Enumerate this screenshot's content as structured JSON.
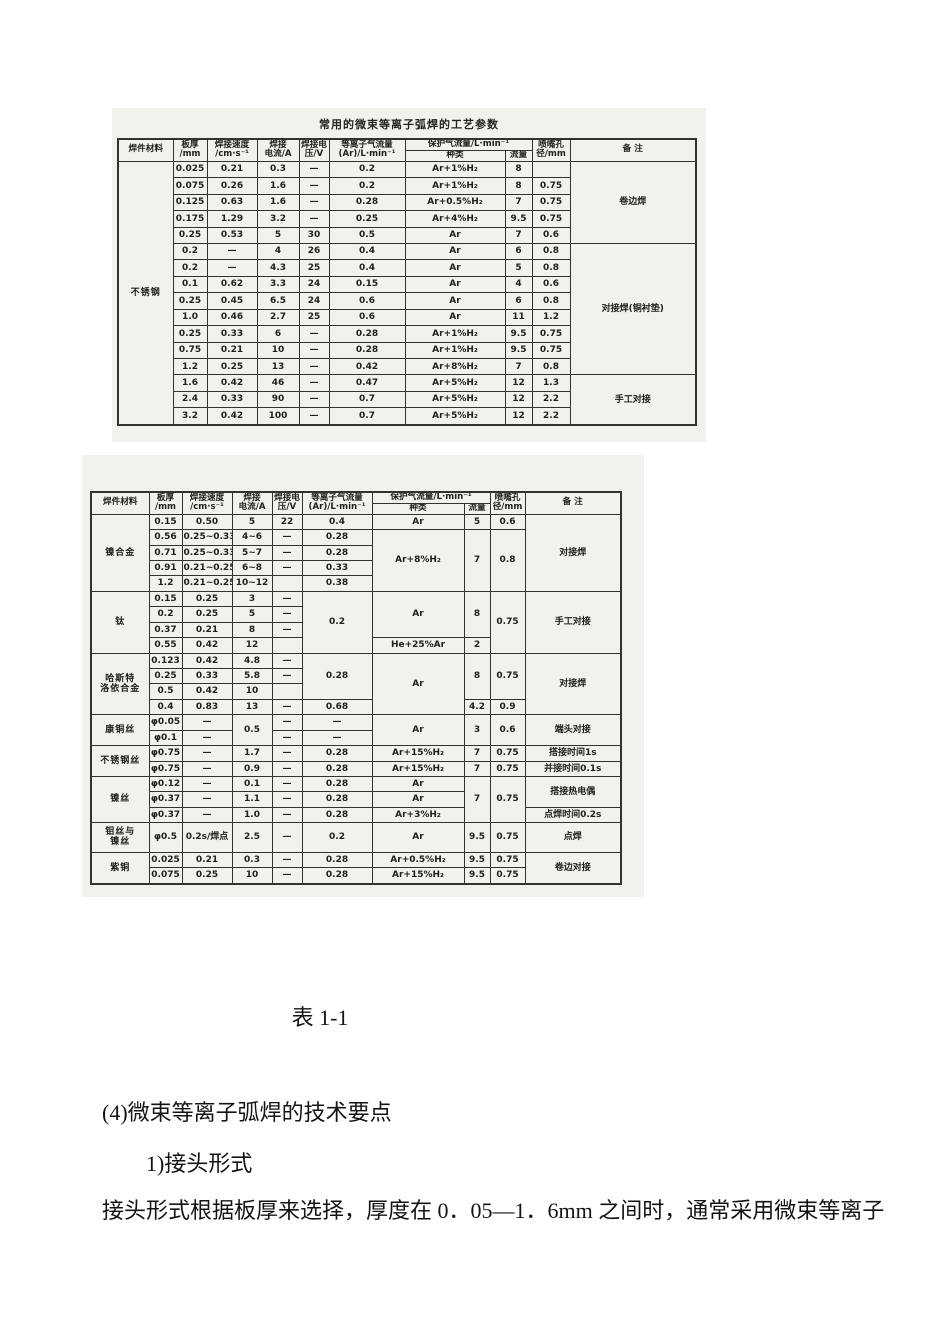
{
  "table1": {
    "title": "常用的微束等离子弧焊的工艺参数",
    "header": [
      [
        {
          "t": "焊件材料",
          "rs": 2,
          "cls": "hd"
        },
        {
          "t": "板厚\n/mm",
          "rs": 2,
          "cls": "hd"
        },
        {
          "t": "焊接速度\n/cm·s⁻¹",
          "rs": 2,
          "cls": "hd"
        },
        {
          "t": "焊接\n电流/A",
          "rs": 2,
          "cls": "hd"
        },
        {
          "t": "焊接电\n压/V",
          "rs": 2,
          "cls": "hd"
        },
        {
          "t": "等离子气流量\n(Ar)/L·min⁻¹",
          "rs": 2,
          "cls": "hd"
        },
        {
          "t": "保护气流量/L·min⁻¹",
          "cs": 2,
          "cls": "hd"
        },
        {
          "t": "喷嘴孔\n径/mm",
          "rs": 2,
          "cls": "hd"
        },
        {
          "t": "备  注",
          "rs": 2,
          "cls": "hd"
        }
      ],
      [
        {
          "t": "种类",
          "cls": "hd"
        },
        {
          "t": "流量",
          "cls": "hd"
        }
      ]
    ],
    "rows": [
      [
        {
          "t": "不锈钢",
          "rs": 16,
          "cls": "mat"
        },
        "0.025",
        "0.21",
        "0.3",
        "—",
        "0.2",
        "Ar+1%H₂",
        "8",
        "",
        {
          "t": "卷边焊",
          "rs": 5
        }
      ],
      [
        "0.075",
        "0.26",
        "1.6",
        "—",
        "0.2",
        "Ar+1%H₂",
        "8",
        "0.75"
      ],
      [
        "0.125",
        "0.63",
        "1.6",
        "—",
        "0.28",
        "Ar+0.5%H₂",
        "7",
        "0.75"
      ],
      [
        "0.175",
        "1.29",
        "3.2",
        "—",
        "0.25",
        "Ar+4%H₂",
        "9.5",
        "0.75"
      ],
      [
        "0.25",
        "0.53",
        "5",
        "30",
        "0.5",
        "Ar",
        "7",
        "0.6"
      ],
      [
        "0.2",
        "—",
        "4",
        "26",
        "0.4",
        "Ar",
        "6",
        "0.8",
        {
          "t": "对接焊(铜衬垫)",
          "rs": 8
        }
      ],
      [
        "0.2",
        "—",
        "4.3",
        "25",
        "0.4",
        "Ar",
        "5",
        "0.8"
      ],
      [
        "0.1",
        "0.62",
        "3.3",
        "24",
        "0.15",
        "Ar",
        "4",
        "0.6"
      ],
      [
        "0.25",
        "0.45",
        "6.5",
        "24",
        "0.6",
        "Ar",
        "6",
        "0.8"
      ],
      [
        "1.0",
        "0.46",
        "2.7",
        "25",
        "0.6",
        "Ar",
        "11",
        "1.2"
      ],
      [
        "0.25",
        "0.33",
        "6",
        "—",
        "0.28",
        "Ar+1%H₂",
        "9.5",
        "0.75"
      ],
      [
        "0.75",
        "0.21",
        "10",
        "—",
        "0.28",
        "Ar+1%H₂",
        "9.5",
        "0.75"
      ],
      [
        "1.2",
        "0.25",
        "13",
        "—",
        "0.42",
        "Ar+8%H₂",
        "7",
        "0.8"
      ],
      [
        "1.6",
        "0.42",
        "46",
        "—",
        "0.47",
        "Ar+5%H₂",
        "12",
        "1.3",
        {
          "t": "手工对接",
          "rs": 3
        }
      ],
      [
        "2.4",
        "0.33",
        "90",
        "—",
        "0.7",
        "Ar+5%H₂",
        "12",
        "2.2"
      ],
      [
        "3.2",
        "0.42",
        "100",
        "—",
        "0.7",
        "Ar+5%H₂",
        "12",
        "2.2"
      ]
    ]
  },
  "table2": {
    "header": [
      [
        {
          "t": "焊件材料",
          "rs": 2,
          "cls": "hd"
        },
        {
          "t": "板厚\n/mm",
          "rs": 2,
          "cls": "hd"
        },
        {
          "t": "焊接速度\n/cm·s⁻¹",
          "rs": 2,
          "cls": "hd"
        },
        {
          "t": "焊接\n电流/A",
          "rs": 2,
          "cls": "hd"
        },
        {
          "t": "焊接电\n压/V",
          "rs": 2,
          "cls": "hd"
        },
        {
          "t": "等离子气流量\n(Ar)/L·min⁻¹",
          "rs": 2,
          "cls": "hd"
        },
        {
          "t": "保护气流量/L·min⁻¹",
          "cs": 2,
          "cls": "hd"
        },
        {
          "t": "喷嘴孔\n径/mm",
          "rs": 2,
          "cls": "hd"
        },
        {
          "t": "备  注",
          "rs": 2,
          "cls": "hd"
        }
      ],
      [
        {
          "t": "种类",
          "cls": "hd"
        },
        {
          "t": "流量",
          "cls": "hd"
        }
      ]
    ],
    "rows": [
      [
        {
          "t": "镍合金",
          "rs": 5,
          "cls": "mat"
        },
        "0.15",
        "0.50",
        "5",
        "22",
        "0.4",
        "Ar",
        "5",
        "0.6",
        {
          "t": "对接焊",
          "rs": 5
        }
      ],
      [
        "0.56",
        "0.25~0.33",
        "4~6",
        "—",
        "0.28",
        {
          "t": "Ar+8%H₂",
          "rs": 4
        },
        {
          "t": "7",
          "rs": 4
        },
        {
          "t": "0.8",
          "rs": 4
        }
      ],
      [
        "0.71",
        "0.25~0.33",
        "5~7",
        "—",
        "0.28"
      ],
      [
        "0.91",
        "0.21~0.25",
        "6~8",
        "—",
        "0.33"
      ],
      [
        "1.2",
        "0.21~0.25",
        "10~12",
        "",
        "0.38"
      ],
      [
        {
          "t": "钛",
          "rs": 4,
          "cls": "mat"
        },
        "0.15",
        "0.25",
        "3",
        "—",
        {
          "t": "0.2",
          "rs": 4
        },
        {
          "t": "Ar",
          "rs": 3
        },
        {
          "t": "8",
          "rs": 3
        },
        {
          "t": "0.75",
          "rs": 4
        },
        {
          "t": "手工对接",
          "rs": 4
        }
      ],
      [
        "0.2",
        "0.25",
        "5",
        "—"
      ],
      [
        "0.37",
        "0.21",
        "8",
        "—"
      ],
      [
        "0.55",
        "0.42",
        "12",
        "",
        "He+25%Ar",
        "2"
      ],
      [
        {
          "t": "哈斯特\n洛依合金",
          "rs": 4,
          "cls": "mat"
        },
        "0.123",
        "0.42",
        "4.8",
        "—",
        {
          "t": "0.28",
          "rs": 3
        },
        {
          "t": "Ar",
          "rs": 4
        },
        {
          "t": "8",
          "rs": 3
        },
        {
          "t": "0.75",
          "rs": 3
        },
        {
          "t": "对接焊",
          "rs": 4
        }
      ],
      [
        "0.25",
        "0.33",
        "5.8",
        "—"
      ],
      [
        "0.5",
        "0.42",
        "10",
        ""
      ],
      [
        "0.4",
        "0.83",
        "13",
        "—",
        "0.68",
        "4.2",
        "0.9"
      ],
      [
        {
          "t": "康铜丝",
          "rs": 2,
          "cls": "mat"
        },
        "φ0.05",
        "—",
        {
          "t": "0.5",
          "rs": 2
        },
        "—",
        "—",
        {
          "t": "Ar",
          "rs": 2
        },
        {
          "t": "3",
          "rs": 2
        },
        {
          "t": "0.6",
          "rs": 2
        },
        {
          "t": "端头对接",
          "rs": 2
        }
      ],
      [
        "φ0.1",
        "—",
        "—",
        "—"
      ],
      [
        {
          "t": "不锈钢丝",
          "rs": 2,
          "cls": "mat"
        },
        "φ0.75",
        "—",
        "1.7",
        "—",
        "0.28",
        "Ar+15%H₂",
        "7",
        "0.75",
        "搭接时间1s"
      ],
      [
        "φ0.75",
        "—",
        "0.9",
        "—",
        "0.28",
        "Ar+15%H₂",
        "7",
        "0.75",
        "并接时间0.1s"
      ],
      [
        {
          "t": "镍丝",
          "rs": 3,
          "cls": "mat"
        },
        "φ0.12",
        "—",
        "0.1",
        "—",
        "0.28",
        "Ar",
        {
          "t": "7",
          "rs": 3
        },
        {
          "t": "0.75",
          "rs": 3
        },
        {
          "t": "搭接热电偶",
          "rs": 2
        }
      ],
      [
        "φ0.37",
        "—",
        "1.1",
        "—",
        "0.28",
        "Ar"
      ],
      [
        "φ0.37",
        "—",
        "1.0",
        "—",
        "0.28",
        "Ar+3%H₂",
        "点焊时间0.2s"
      ],
      [
        {
          "t": "钼丝与\n镍丝",
          "cls": "mat"
        },
        "φ0.5",
        "0.2s/焊点",
        "2.5",
        "—",
        "0.2",
        "Ar",
        "9.5",
        "0.75",
        "点焊"
      ],
      [
        {
          "t": "紫铜",
          "rs": 2,
          "cls": "mat"
        },
        "0.025",
        "0.21",
        "0.3",
        "—",
        "0.28",
        "Ar+0.5%H₂",
        "9.5",
        "0.75",
        {
          "t": "卷边对接",
          "rs": 2
        }
      ],
      [
        "0.075",
        "0.25",
        "10",
        "—",
        "0.28",
        "Ar+15%H₂",
        "9.5",
        "0.75"
      ]
    ]
  },
  "caption": "表 1-1",
  "text": {
    "p1": "(4)微束等离子弧焊的技术要点",
    "p2": "1)接头形式",
    "p3": "接头形式根据板厚来选择，厚度在 0．05—1．6mm 之间时，通常采用微束等离子"
  }
}
